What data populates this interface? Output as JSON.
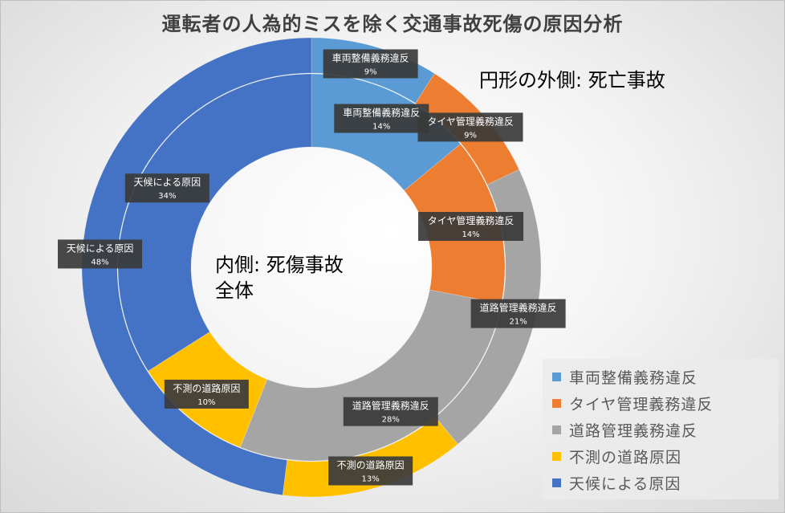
{
  "title": "運転者の人為的ミスを除く交通事故死傷の原因分析",
  "annotations": {
    "outer": "円形の外側:  死亡事故",
    "inner_line1": "内側:  死傷事故",
    "inner_line2": "全体"
  },
  "chart_data": {
    "type": "donut",
    "title": "運転者の人為的ミスを除く交通事故死傷の原因分析",
    "categories": [
      "車両整備義務違反",
      "タイヤ管理義務違反",
      "道路管理義務違反",
      "不測の道路原因",
      "天候による原因"
    ],
    "colors": [
      "#5b9bd5",
      "#ed7d31",
      "#a5a5a5",
      "#ffc000",
      "#4472c4"
    ],
    "series": [
      {
        "name": "死亡事故",
        "ring": "outer",
        "values": [
          9,
          9,
          21,
          13,
          48
        ],
        "labels": [
          "9%",
          "9%",
          "21%",
          "13%",
          "48%"
        ]
      },
      {
        "name": "死傷事故全体",
        "ring": "inner",
        "values": [
          14,
          14,
          28,
          10,
          34
        ],
        "labels": [
          "14%",
          "14%",
          "28%",
          "10%",
          "34%"
        ]
      }
    ],
    "legend_position": "bottom-right"
  }
}
